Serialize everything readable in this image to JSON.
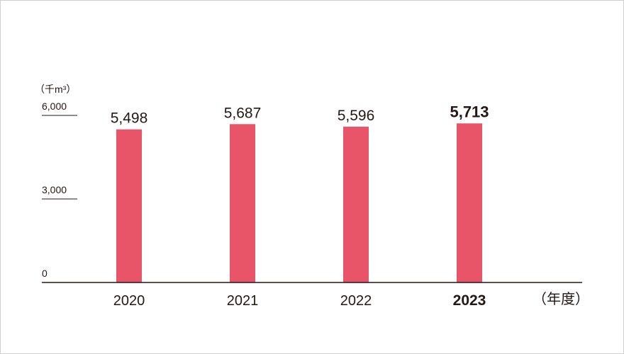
{
  "chart_data": {
    "type": "bar",
    "y_unit_label": "（千m³）",
    "x_unit_label": "（年度）",
    "categories": [
      "2020",
      "2021",
      "2022",
      "2023"
    ],
    "values": [
      5498,
      5687,
      5596,
      5713
    ],
    "value_labels": [
      "5,498",
      "5,687",
      "5,596",
      "5,713"
    ],
    "highlight_category": "2023",
    "ylim": [
      0,
      6000
    ],
    "yticks": [
      0,
      3000,
      6000
    ],
    "ytick_labels": [
      "0",
      "3,000",
      "6,000"
    ],
    "bar_color": "#e85468",
    "axis_color": "#231815",
    "grid": false
  }
}
